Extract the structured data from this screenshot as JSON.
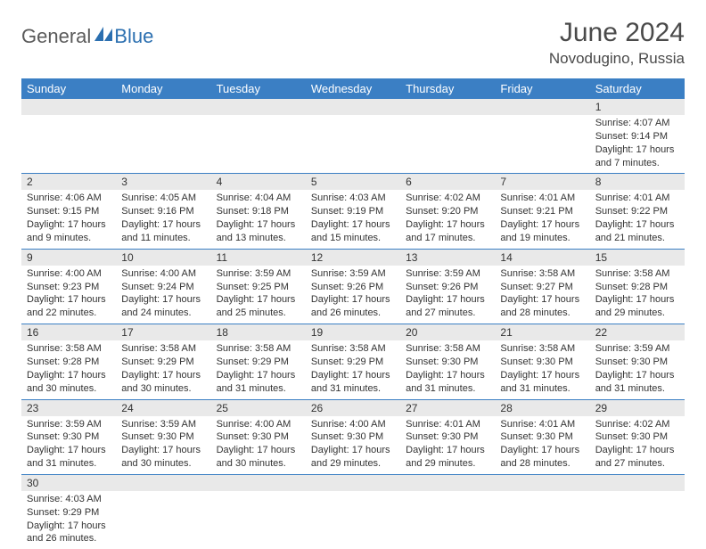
{
  "logo": {
    "part1": "General",
    "part2": "Blue"
  },
  "title": "June 2024",
  "location": "Novodugino, Russia",
  "colors": {
    "header_bg": "#3b7fc4",
    "header_text": "#ffffff",
    "daynum_bg": "#e9e9e9",
    "row_border": "#3b7fc4",
    "logo_gray": "#5a5a5a",
    "logo_blue": "#2b6fb0",
    "text": "#333333",
    "title_color": "#4a4a4a"
  },
  "weekdays": [
    "Sunday",
    "Monday",
    "Tuesday",
    "Wednesday",
    "Thursday",
    "Friday",
    "Saturday"
  ],
  "weeks": [
    [
      null,
      null,
      null,
      null,
      null,
      null,
      {
        "day": "1",
        "sunrise": "Sunrise: 4:07 AM",
        "sunset": "Sunset: 9:14 PM",
        "daylight1": "Daylight: 17 hours",
        "daylight2": "and 7 minutes."
      }
    ],
    [
      {
        "day": "2",
        "sunrise": "Sunrise: 4:06 AM",
        "sunset": "Sunset: 9:15 PM",
        "daylight1": "Daylight: 17 hours",
        "daylight2": "and 9 minutes."
      },
      {
        "day": "3",
        "sunrise": "Sunrise: 4:05 AM",
        "sunset": "Sunset: 9:16 PM",
        "daylight1": "Daylight: 17 hours",
        "daylight2": "and 11 minutes."
      },
      {
        "day": "4",
        "sunrise": "Sunrise: 4:04 AM",
        "sunset": "Sunset: 9:18 PM",
        "daylight1": "Daylight: 17 hours",
        "daylight2": "and 13 minutes."
      },
      {
        "day": "5",
        "sunrise": "Sunrise: 4:03 AM",
        "sunset": "Sunset: 9:19 PM",
        "daylight1": "Daylight: 17 hours",
        "daylight2": "and 15 minutes."
      },
      {
        "day": "6",
        "sunrise": "Sunrise: 4:02 AM",
        "sunset": "Sunset: 9:20 PM",
        "daylight1": "Daylight: 17 hours",
        "daylight2": "and 17 minutes."
      },
      {
        "day": "7",
        "sunrise": "Sunrise: 4:01 AM",
        "sunset": "Sunset: 9:21 PM",
        "daylight1": "Daylight: 17 hours",
        "daylight2": "and 19 minutes."
      },
      {
        "day": "8",
        "sunrise": "Sunrise: 4:01 AM",
        "sunset": "Sunset: 9:22 PM",
        "daylight1": "Daylight: 17 hours",
        "daylight2": "and 21 minutes."
      }
    ],
    [
      {
        "day": "9",
        "sunrise": "Sunrise: 4:00 AM",
        "sunset": "Sunset: 9:23 PM",
        "daylight1": "Daylight: 17 hours",
        "daylight2": "and 22 minutes."
      },
      {
        "day": "10",
        "sunrise": "Sunrise: 4:00 AM",
        "sunset": "Sunset: 9:24 PM",
        "daylight1": "Daylight: 17 hours",
        "daylight2": "and 24 minutes."
      },
      {
        "day": "11",
        "sunrise": "Sunrise: 3:59 AM",
        "sunset": "Sunset: 9:25 PM",
        "daylight1": "Daylight: 17 hours",
        "daylight2": "and 25 minutes."
      },
      {
        "day": "12",
        "sunrise": "Sunrise: 3:59 AM",
        "sunset": "Sunset: 9:26 PM",
        "daylight1": "Daylight: 17 hours",
        "daylight2": "and 26 minutes."
      },
      {
        "day": "13",
        "sunrise": "Sunrise: 3:59 AM",
        "sunset": "Sunset: 9:26 PM",
        "daylight1": "Daylight: 17 hours",
        "daylight2": "and 27 minutes."
      },
      {
        "day": "14",
        "sunrise": "Sunrise: 3:58 AM",
        "sunset": "Sunset: 9:27 PM",
        "daylight1": "Daylight: 17 hours",
        "daylight2": "and 28 minutes."
      },
      {
        "day": "15",
        "sunrise": "Sunrise: 3:58 AM",
        "sunset": "Sunset: 9:28 PM",
        "daylight1": "Daylight: 17 hours",
        "daylight2": "and 29 minutes."
      }
    ],
    [
      {
        "day": "16",
        "sunrise": "Sunrise: 3:58 AM",
        "sunset": "Sunset: 9:28 PM",
        "daylight1": "Daylight: 17 hours",
        "daylight2": "and 30 minutes."
      },
      {
        "day": "17",
        "sunrise": "Sunrise: 3:58 AM",
        "sunset": "Sunset: 9:29 PM",
        "daylight1": "Daylight: 17 hours",
        "daylight2": "and 30 minutes."
      },
      {
        "day": "18",
        "sunrise": "Sunrise: 3:58 AM",
        "sunset": "Sunset: 9:29 PM",
        "daylight1": "Daylight: 17 hours",
        "daylight2": "and 31 minutes."
      },
      {
        "day": "19",
        "sunrise": "Sunrise: 3:58 AM",
        "sunset": "Sunset: 9:29 PM",
        "daylight1": "Daylight: 17 hours",
        "daylight2": "and 31 minutes."
      },
      {
        "day": "20",
        "sunrise": "Sunrise: 3:58 AM",
        "sunset": "Sunset: 9:30 PM",
        "daylight1": "Daylight: 17 hours",
        "daylight2": "and 31 minutes."
      },
      {
        "day": "21",
        "sunrise": "Sunrise: 3:58 AM",
        "sunset": "Sunset: 9:30 PM",
        "daylight1": "Daylight: 17 hours",
        "daylight2": "and 31 minutes."
      },
      {
        "day": "22",
        "sunrise": "Sunrise: 3:59 AM",
        "sunset": "Sunset: 9:30 PM",
        "daylight1": "Daylight: 17 hours",
        "daylight2": "and 31 minutes."
      }
    ],
    [
      {
        "day": "23",
        "sunrise": "Sunrise: 3:59 AM",
        "sunset": "Sunset: 9:30 PM",
        "daylight1": "Daylight: 17 hours",
        "daylight2": "and 31 minutes."
      },
      {
        "day": "24",
        "sunrise": "Sunrise: 3:59 AM",
        "sunset": "Sunset: 9:30 PM",
        "daylight1": "Daylight: 17 hours",
        "daylight2": "and 30 minutes."
      },
      {
        "day": "25",
        "sunrise": "Sunrise: 4:00 AM",
        "sunset": "Sunset: 9:30 PM",
        "daylight1": "Daylight: 17 hours",
        "daylight2": "and 30 minutes."
      },
      {
        "day": "26",
        "sunrise": "Sunrise: 4:00 AM",
        "sunset": "Sunset: 9:30 PM",
        "daylight1": "Daylight: 17 hours",
        "daylight2": "and 29 minutes."
      },
      {
        "day": "27",
        "sunrise": "Sunrise: 4:01 AM",
        "sunset": "Sunset: 9:30 PM",
        "daylight1": "Daylight: 17 hours",
        "daylight2": "and 29 minutes."
      },
      {
        "day": "28",
        "sunrise": "Sunrise: 4:01 AM",
        "sunset": "Sunset: 9:30 PM",
        "daylight1": "Daylight: 17 hours",
        "daylight2": "and 28 minutes."
      },
      {
        "day": "29",
        "sunrise": "Sunrise: 4:02 AM",
        "sunset": "Sunset: 9:30 PM",
        "daylight1": "Daylight: 17 hours",
        "daylight2": "and 27 minutes."
      }
    ],
    [
      {
        "day": "30",
        "sunrise": "Sunrise: 4:03 AM",
        "sunset": "Sunset: 9:29 PM",
        "daylight1": "Daylight: 17 hours",
        "daylight2": "and 26 minutes."
      },
      null,
      null,
      null,
      null,
      null,
      null
    ]
  ]
}
